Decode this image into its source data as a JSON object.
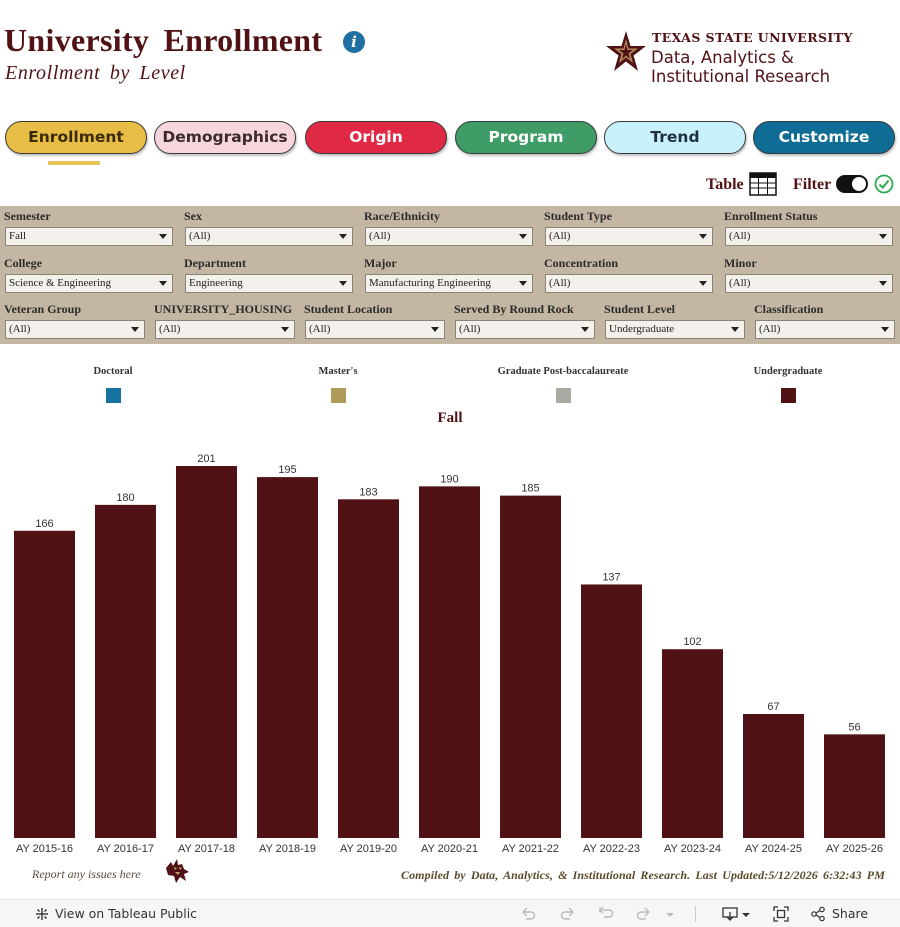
{
  "header": {
    "title": "University Enrollment",
    "subtitle": "Enrollment by Level",
    "logo_top": "TEXAS STATE UNIVERSITY",
    "logo_line2": "Data, Analytics &",
    "logo_line3": "Institutional Research"
  },
  "nav": [
    {
      "label": "Enrollment",
      "color": "#e8bd45",
      "text_color": "#3a2a0a"
    },
    {
      "label": "Demographics",
      "color": "#f6d6dc",
      "text_color": "#3a2a2a"
    },
    {
      "label": "Origin",
      "color": "#e02a45",
      "text_color": "#ffffff"
    },
    {
      "label": "Program",
      "color": "#3f9c66",
      "text_color": "#ffffff"
    },
    {
      "label": "Trend",
      "color": "#c9f1fb",
      "text_color": "#1f2f3f"
    },
    {
      "label": "Customize",
      "color": "#0f6c94",
      "text_color": "#ffffff"
    }
  ],
  "toggles": {
    "table_label": "Table",
    "filter_label": "Filter"
  },
  "filters": {
    "row1": [
      {
        "label": "Semester",
        "value": "Fall"
      },
      {
        "label": "Sex",
        "value": "(All)"
      },
      {
        "label": "Race/Ethnicity",
        "value": "(All)"
      },
      {
        "label": "Student Type",
        "value": "(All)"
      },
      {
        "label": "Enrollment Status",
        "value": "(All)"
      }
    ],
    "row2": [
      {
        "label": "College",
        "value": "Science & Engineering"
      },
      {
        "label": "Department",
        "value": "Engineering"
      },
      {
        "label": "Major",
        "value": "Manufacturing Engineering"
      },
      {
        "label": "Concentration",
        "value": "(All)"
      },
      {
        "label": "Minor",
        "value": "(All)"
      }
    ],
    "row3": [
      {
        "label": "Veteran Group",
        "value": "(All)"
      },
      {
        "label": "UNIVERSITY_HOUSING",
        "value": "(All)"
      },
      {
        "label": "Student Location",
        "value": "(All)"
      },
      {
        "label": "Served By Round Rock",
        "value": "(All)"
      },
      {
        "label": "Student Level",
        "value": "Undergraduate"
      },
      {
        "label": "Classification",
        "value": "(All)"
      }
    ]
  },
  "legend": [
    {
      "label": "Doctoral",
      "color": "#1572a1"
    },
    {
      "label": "Master's",
      "color": "#b09a5a"
    },
    {
      "label": "Graduate Post-baccalaureate",
      "color": "#a9aaa2"
    },
    {
      "label": "Undergraduate",
      "color": "#501214"
    }
  ],
  "chart_data": {
    "type": "bar",
    "title": "Fall",
    "categories": [
      "AY 2015-16",
      "AY 2016-17",
      "AY 2017-18",
      "AY 2018-19",
      "AY 2019-20",
      "AY 2020-21",
      "AY 2021-22",
      "AY 2022-23",
      "AY 2023-24",
      "AY 2024-25",
      "AY 2025-26"
    ],
    "series": [
      {
        "name": "Undergraduate",
        "color": "#501214",
        "values": [
          166,
          180,
          201,
          195,
          183,
          190,
          185,
          137,
          102,
          67,
          56
        ]
      }
    ],
    "ylim": [
      0,
      201
    ],
    "grid": false,
    "legend_position": "top"
  },
  "footer": {
    "report_link": "Report any issues here",
    "compiled": "Compiled by Data, Analytics, & Institutional Research. Last Updated:5/12/2026 6:32:43 PM"
  },
  "toolbar": {
    "view_label": "View on Tableau Public",
    "share_label": "Share"
  }
}
